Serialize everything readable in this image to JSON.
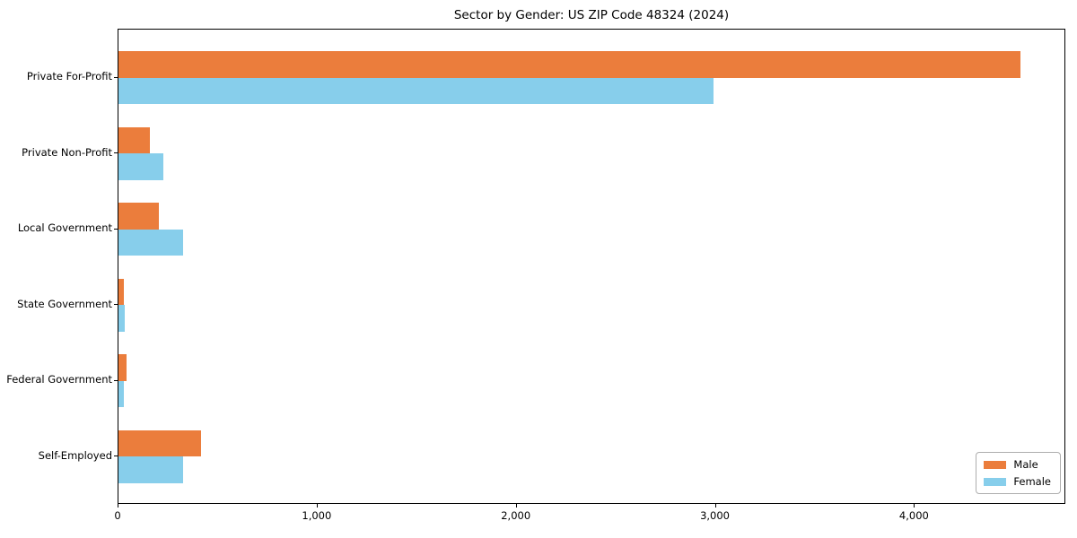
{
  "chart_data": {
    "type": "bar",
    "orientation": "horizontal",
    "title": "Sector by Gender: US ZIP Code 48324 (2024)",
    "xlabel": "",
    "ylabel": "",
    "categories": [
      "Private For-Profit",
      "Private Non-Profit",
      "Local Government",
      "State Government",
      "Federal Government",
      "Self-Employed"
    ],
    "series": [
      {
        "name": "Male",
        "color": "#eb7d3c",
        "values": [
          4530,
          160,
          205,
          25,
          40,
          415
        ]
      },
      {
        "name": "Female",
        "color": "#87ceeb",
        "values": [
          2990,
          225,
          325,
          30,
          25,
          325
        ]
      }
    ],
    "xlim": [
      0,
      4760
    ],
    "x_ticks": [
      0,
      1000,
      2000,
      3000,
      4000
    ],
    "x_tick_labels": [
      "0",
      "1,000",
      "2,000",
      "3,000",
      "4,000"
    ],
    "grid": false,
    "legend_position": "lower right"
  }
}
